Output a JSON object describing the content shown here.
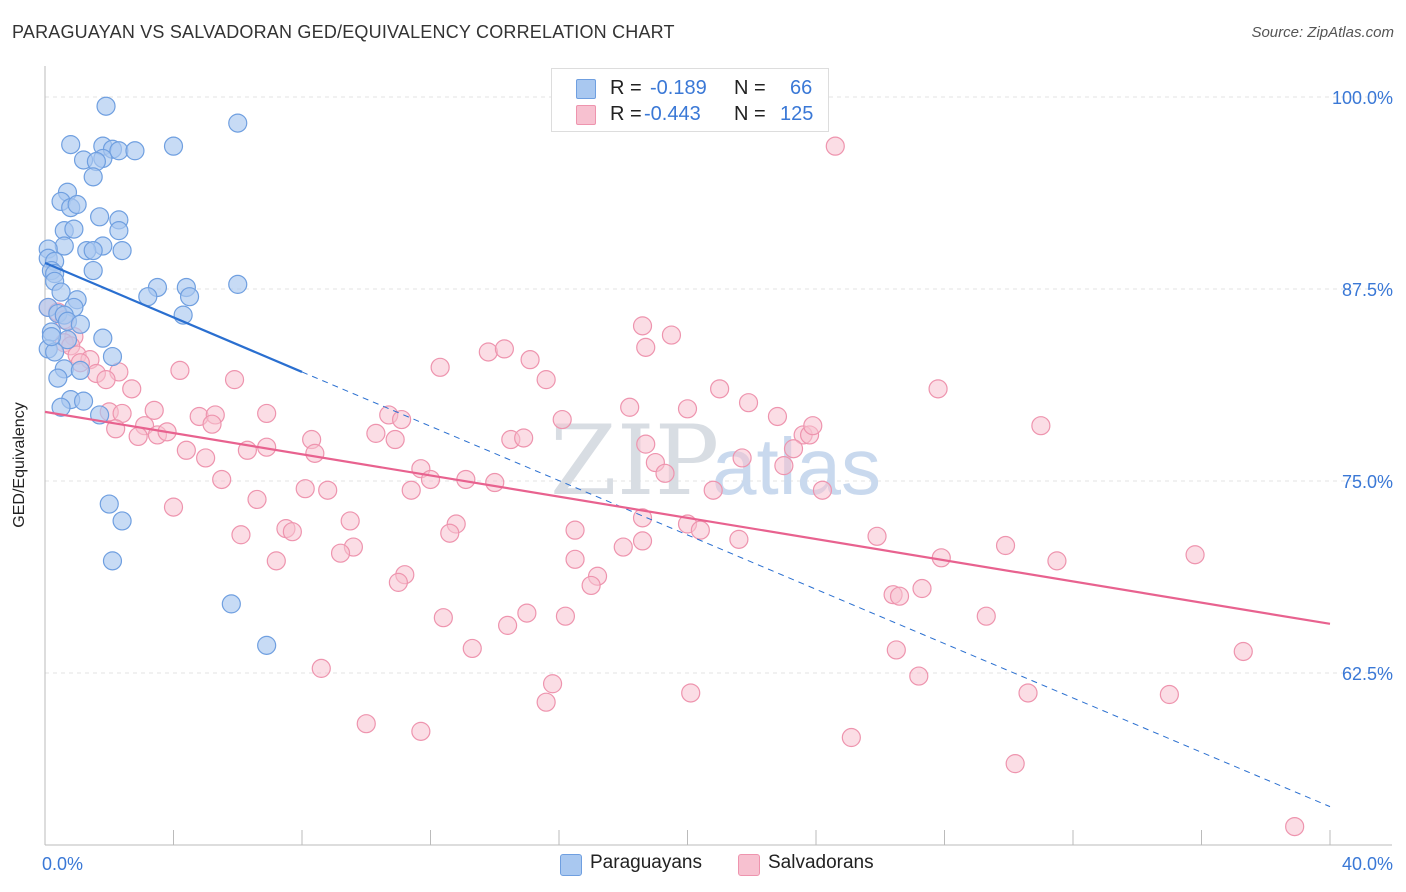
{
  "title": "PARAGUAYAN VS SALVADORAN GED/EQUIVALENCY CORRELATION CHART",
  "source": "Source: ZipAtlas.com",
  "watermark": {
    "zip": "ZIP",
    "atlas": "atlas"
  },
  "legend": {
    "r_label": "R =",
    "n_label": "N =",
    "rows": [
      {
        "r": "-0.189",
        "n": "66"
      },
      {
        "r": "-0.443",
        "n": "125"
      }
    ]
  },
  "bottom_legend": [
    "Paraguayans",
    "Salvadorans"
  ],
  "colors": {
    "blue_fill": "#a9c8f0",
    "blue_stroke": "#6f9fe0",
    "blue_line": "#2a6fd0",
    "pink_fill": "#f7c1d0",
    "pink_stroke": "#ee94ae",
    "pink_line": "#e8628f",
    "tick_text": "#3a78d6",
    "grid": "#e3e3e3"
  },
  "chart_data": {
    "type": "scatter",
    "title": "PARAGUAYAN VS SALVADORAN GED/EQUIVALENCY CORRELATION CHART",
    "xlabel": "",
    "ylabel": "GED/Equivalency",
    "xlim": [
      0,
      40
    ],
    "ylim": [
      50,
      100
    ],
    "x_tick_labels": [
      "0.0%",
      "40.0%"
    ],
    "y_ticks": [
      62.5,
      75.0,
      87.5,
      100.0
    ],
    "y_tick_labels": [
      "62.5%",
      "75.0%",
      "87.5%",
      "100.0%"
    ],
    "series": [
      {
        "name": "Paraguayans",
        "r": -0.189,
        "n": 66,
        "trend": {
          "x0": 0,
          "y0": 89.2,
          "x1_solid": 8,
          "y1_solid": 82.1,
          "x1": 40,
          "y1": 53.8
        },
        "points": [
          [
            1.9,
            99.4
          ],
          [
            6.0,
            98.3
          ],
          [
            0.8,
            96.9
          ],
          [
            1.8,
            96.8
          ],
          [
            2.1,
            96.6
          ],
          [
            2.3,
            96.5
          ],
          [
            2.8,
            96.5
          ],
          [
            4.0,
            96.8
          ],
          [
            1.8,
            96.0
          ],
          [
            1.2,
            95.9
          ],
          [
            1.6,
            95.8
          ],
          [
            1.5,
            94.8
          ],
          [
            0.7,
            93.8
          ],
          [
            0.5,
            93.2
          ],
          [
            0.8,
            92.8
          ],
          [
            1.0,
            93.0
          ],
          [
            1.7,
            92.2
          ],
          [
            2.3,
            92.0
          ],
          [
            0.6,
            91.3
          ],
          [
            0.9,
            91.4
          ],
          [
            2.3,
            91.3
          ],
          [
            0.6,
            90.3
          ],
          [
            1.8,
            90.3
          ],
          [
            1.3,
            90.0
          ],
          [
            1.5,
            90.0
          ],
          [
            2.4,
            90.0
          ],
          [
            0.1,
            90.1
          ],
          [
            0.1,
            89.5
          ],
          [
            0.3,
            89.3
          ],
          [
            0.2,
            88.7
          ],
          [
            0.3,
            88.5
          ],
          [
            1.5,
            88.7
          ],
          [
            0.3,
            88.0
          ],
          [
            6.0,
            87.8
          ],
          [
            3.5,
            87.6
          ],
          [
            4.4,
            87.6
          ],
          [
            0.5,
            87.3
          ],
          [
            3.2,
            87.0
          ],
          [
            4.5,
            87.0
          ],
          [
            1.0,
            86.8
          ],
          [
            0.1,
            86.3
          ],
          [
            0.9,
            86.3
          ],
          [
            0.4,
            85.9
          ],
          [
            0.6,
            85.8
          ],
          [
            4.3,
            85.8
          ],
          [
            0.7,
            85.4
          ],
          [
            1.1,
            85.2
          ],
          [
            0.2,
            84.7
          ],
          [
            0.7,
            84.2
          ],
          [
            1.8,
            84.3
          ],
          [
            0.1,
            83.6
          ],
          [
            0.3,
            83.4
          ],
          [
            2.1,
            83.1
          ],
          [
            0.6,
            82.3
          ],
          [
            1.1,
            82.2
          ],
          [
            0.4,
            81.7
          ],
          [
            0.8,
            80.3
          ],
          [
            0.5,
            79.8
          ],
          [
            1.2,
            80.2
          ],
          [
            1.7,
            79.3
          ],
          [
            2.0,
            73.5
          ],
          [
            2.4,
            72.4
          ],
          [
            2.1,
            69.8
          ],
          [
            5.8,
            67.0
          ],
          [
            6.9,
            64.3
          ],
          [
            0.2,
            84.4
          ]
        ]
      },
      {
        "name": "Salvadorans",
        "r": -0.443,
        "n": 125,
        "trend": {
          "x0": 0,
          "y0": 79.5,
          "x1": 40,
          "y1": 65.7
        },
        "points": [
          [
            0.1,
            86.3
          ],
          [
            0.4,
            86.0
          ],
          [
            0.6,
            85.5
          ],
          [
            0.9,
            84.4
          ],
          [
            0.6,
            84.0
          ],
          [
            0.8,
            83.8
          ],
          [
            1.0,
            83.2
          ],
          [
            1.4,
            82.9
          ],
          [
            1.1,
            82.7
          ],
          [
            1.6,
            82.0
          ],
          [
            2.3,
            82.1
          ],
          [
            1.9,
            81.6
          ],
          [
            4.2,
            82.2
          ],
          [
            5.9,
            81.6
          ],
          [
            2.7,
            81.0
          ],
          [
            2.0,
            79.5
          ],
          [
            2.4,
            79.4
          ],
          [
            3.4,
            79.6
          ],
          [
            4.8,
            79.2
          ],
          [
            5.3,
            79.3
          ],
          [
            6.9,
            79.4
          ],
          [
            2.2,
            78.4
          ],
          [
            3.1,
            78.6
          ],
          [
            3.5,
            78.0
          ],
          [
            3.8,
            78.2
          ],
          [
            5.2,
            78.7
          ],
          [
            2.9,
            77.9
          ],
          [
            4.4,
            77.0
          ],
          [
            5.0,
            76.5
          ],
          [
            6.3,
            77.0
          ],
          [
            6.9,
            77.2
          ],
          [
            8.3,
            77.7
          ],
          [
            8.4,
            76.8
          ],
          [
            10.3,
            78.1
          ],
          [
            10.7,
            79.3
          ],
          [
            11.1,
            79.0
          ],
          [
            10.9,
            77.7
          ],
          [
            12.3,
            82.4
          ],
          [
            13.8,
            83.4
          ],
          [
            14.3,
            83.6
          ],
          [
            15.1,
            82.9
          ],
          [
            15.6,
            81.6
          ],
          [
            14.5,
            77.7
          ],
          [
            14.9,
            77.8
          ],
          [
            16.1,
            79.0
          ],
          [
            11.7,
            75.8
          ],
          [
            11.4,
            74.4
          ],
          [
            12.0,
            75.1
          ],
          [
            13.1,
            75.1
          ],
          [
            14.0,
            74.9
          ],
          [
            8.1,
            74.5
          ],
          [
            8.8,
            74.4
          ],
          [
            5.5,
            75.1
          ],
          [
            6.6,
            73.8
          ],
          [
            4.0,
            73.3
          ],
          [
            9.5,
            72.4
          ],
          [
            12.8,
            72.2
          ],
          [
            7.5,
            71.9
          ],
          [
            7.7,
            71.7
          ],
          [
            12.6,
            71.6
          ],
          [
            6.1,
            71.5
          ],
          [
            9.6,
            70.7
          ],
          [
            9.2,
            70.3
          ],
          [
            7.2,
            69.8
          ],
          [
            11.2,
            68.9
          ],
          [
            11.0,
            68.4
          ],
          [
            16.5,
            71.8
          ],
          [
            16.5,
            69.9
          ],
          [
            17.2,
            68.8
          ],
          [
            17.0,
            68.2
          ],
          [
            18.6,
            71.1
          ],
          [
            18.0,
            70.7
          ],
          [
            18.6,
            72.6
          ],
          [
            18.7,
            77.4
          ],
          [
            18.2,
            79.8
          ],
          [
            18.7,
            83.7
          ],
          [
            18.6,
            85.1
          ],
          [
            19.5,
            84.5
          ],
          [
            19.0,
            76.2
          ],
          [
            19.3,
            75.5
          ],
          [
            20.0,
            72.2
          ],
          [
            20.4,
            71.8
          ],
          [
            20.8,
            74.4
          ],
          [
            20.0,
            79.7
          ],
          [
            21.0,
            81.0
          ],
          [
            21.7,
            76.5
          ],
          [
            21.9,
            80.1
          ],
          [
            21.6,
            71.2
          ],
          [
            22.8,
            79.2
          ],
          [
            23.0,
            76.0
          ],
          [
            23.6,
            78.0
          ],
          [
            23.8,
            78.0
          ],
          [
            23.9,
            78.6
          ],
          [
            23.3,
            77.1
          ],
          [
            24.2,
            74.4
          ],
          [
            24.6,
            96.8
          ],
          [
            25.9,
            71.4
          ],
          [
            26.4,
            67.6
          ],
          [
            26.6,
            67.5
          ],
          [
            27.3,
            68.0
          ],
          [
            27.2,
            62.3
          ],
          [
            26.5,
            64.0
          ],
          [
            27.9,
            70.0
          ],
          [
            27.8,
            81.0
          ],
          [
            29.3,
            66.2
          ],
          [
            29.9,
            70.8
          ],
          [
            31.5,
            69.8
          ],
          [
            31.0,
            78.6
          ],
          [
            30.6,
            61.2
          ],
          [
            30.2,
            56.6
          ],
          [
            8.6,
            62.8
          ],
          [
            10.0,
            59.2
          ],
          [
            11.7,
            58.7
          ],
          [
            12.4,
            66.1
          ],
          [
            13.3,
            64.1
          ],
          [
            14.4,
            65.6
          ],
          [
            15.0,
            66.4
          ],
          [
            15.6,
            60.6
          ],
          [
            15.8,
            61.8
          ],
          [
            16.2,
            66.2
          ],
          [
            20.1,
            61.2
          ],
          [
            25.1,
            58.3
          ],
          [
            35.0,
            61.1
          ],
          [
            35.8,
            70.2
          ],
          [
            37.3,
            63.9
          ],
          [
            38.9,
            52.5
          ]
        ]
      }
    ]
  }
}
